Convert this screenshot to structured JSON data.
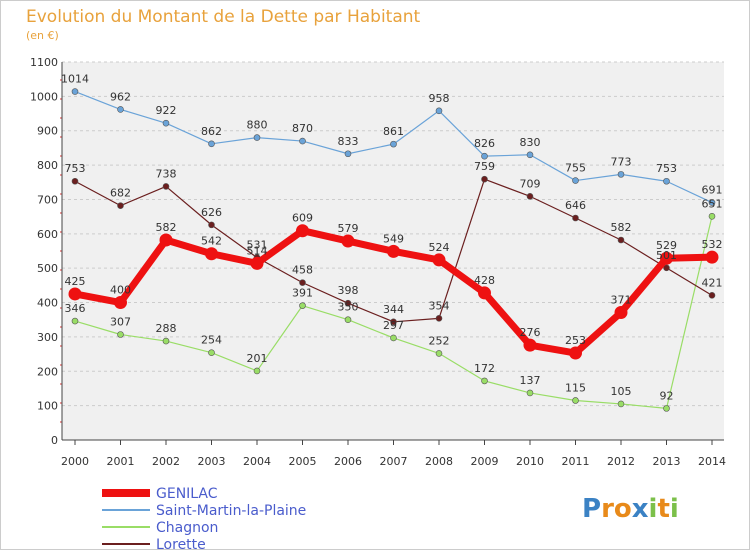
{
  "chart_data": {
    "type": "line",
    "title": "Evolution du Montant de la Dette par Habitant",
    "subtitle": "(en €)",
    "xlabel": "",
    "ylabel": "",
    "x": [
      "2000",
      "2001",
      "2002",
      "2003",
      "2004",
      "2005",
      "2006",
      "2007",
      "2008",
      "2009",
      "2010",
      "2011",
      "2012",
      "2013",
      "2014"
    ],
    "ylim": [
      0,
      1100
    ],
    "yticks": [
      0,
      100,
      200,
      300,
      400,
      500,
      600,
      700,
      800,
      900,
      1000,
      1100
    ],
    "grid": "horizontal-dashed",
    "legend_position": "bottom-left",
    "series": [
      {
        "name": "GENILAC",
        "color": "#ee1111",
        "emphasis": true,
        "values": [
          425,
          400,
          582,
          542,
          514,
          609,
          579,
          549,
          524,
          428,
          276,
          253,
          371,
          529,
          532
        ]
      },
      {
        "name": "Saint-Martin-la-Plaine",
        "color": "#6aa3d8",
        "emphasis": false,
        "values": [
          1014,
          962,
          922,
          862,
          880,
          870,
          833,
          861,
          958,
          826,
          830,
          755,
          773,
          753,
          691
        ]
      },
      {
        "name": "Chagnon",
        "color": "#99dd66",
        "emphasis": false,
        "values": [
          346,
          307,
          288,
          254,
          201,
          391,
          350,
          297,
          252,
          172,
          137,
          115,
          105,
          92,
          651
        ]
      },
      {
        "name": "Lorette",
        "color": "#6b1f1f",
        "emphasis": false,
        "values": [
          753,
          682,
          738,
          626,
          531,
          458,
          398,
          344,
          354,
          759,
          709,
          646,
          582,
          501,
          421
        ]
      }
    ]
  },
  "logo": {
    "text": "Proxiti",
    "letters": [
      "P",
      "r",
      "o",
      "x",
      "i",
      "t",
      "i"
    ]
  }
}
